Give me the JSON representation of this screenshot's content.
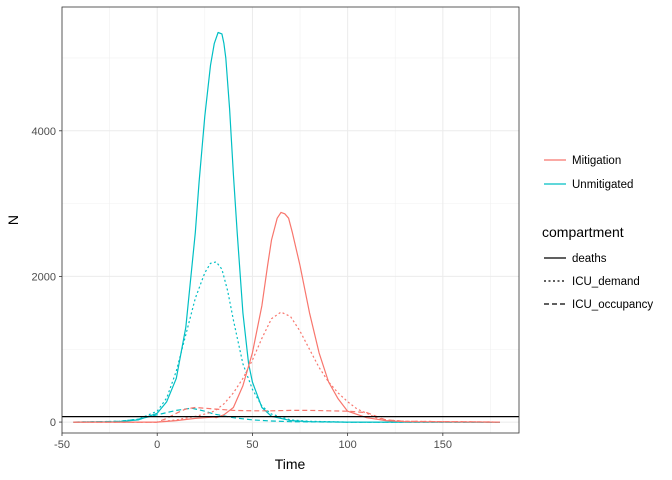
{
  "chart_data": {
    "type": "line",
    "xlabel": "Time",
    "ylabel": "N",
    "xlim": [
      -50,
      190
    ],
    "ylim": [
      -150,
      5700
    ],
    "x_ticks": [
      -50,
      0,
      50,
      100,
      150
    ],
    "y_ticks": [
      0,
      2000,
      4000
    ],
    "grid": true,
    "hline": {
      "y": 75,
      "color": "#000000",
      "linetype": "solid"
    },
    "legends": [
      {
        "title": "",
        "position": "right",
        "entries": [
          {
            "label": "Mitigation",
            "color": "#F8766D"
          },
          {
            "label": "Unmitigated",
            "color": "#00BFC4"
          }
        ]
      },
      {
        "title": "compartment",
        "position": "right",
        "entries": [
          {
            "label": "deaths",
            "linetype": "solid"
          },
          {
            "label": "ICU_demand",
            "linetype": "dotted"
          },
          {
            "label": "ICU_occupancy",
            "linetype": "dashed"
          }
        ]
      }
    ],
    "series": [
      {
        "name": "Unmitigated",
        "compartment": "deaths",
        "color": "#00BFC4",
        "linetype": "solid",
        "x": [
          -44,
          -20,
          -10,
          0,
          5,
          10,
          15,
          20,
          22,
          25,
          28,
          30,
          32,
          34,
          35,
          36,
          38,
          40,
          42,
          45,
          48,
          50,
          55,
          60,
          70,
          80,
          100,
          180
        ],
        "y": [
          0,
          5,
          30,
          120,
          280,
          600,
          1300,
          2600,
          3300,
          4200,
          4900,
          5200,
          5350,
          5330,
          5200,
          5000,
          4300,
          3400,
          2600,
          1500,
          800,
          550,
          200,
          80,
          20,
          5,
          0,
          0
        ]
      },
      {
        "name": "Unmitigated",
        "compartment": "ICU_demand",
        "color": "#00BFC4",
        "linetype": "dotted",
        "x": [
          -44,
          -20,
          -10,
          0,
          5,
          10,
          15,
          20,
          25,
          28,
          31,
          34,
          37,
          40,
          45,
          50,
          55,
          60,
          70,
          80,
          100,
          180
        ],
        "y": [
          0,
          10,
          40,
          150,
          330,
          700,
          1200,
          1700,
          2050,
          2180,
          2200,
          2100,
          1800,
          1400,
          800,
          450,
          220,
          110,
          30,
          10,
          0,
          0
        ]
      },
      {
        "name": "Unmitigated",
        "compartment": "ICU_occupancy",
        "color": "#00BFC4",
        "linetype": "dashed",
        "x": [
          -44,
          -20,
          -10,
          0,
          5,
          10,
          15,
          18,
          20,
          25,
          30,
          40,
          50,
          60,
          70,
          80,
          100,
          180
        ],
        "y": [
          0,
          10,
          40,
          100,
          130,
          160,
          180,
          190,
          180,
          150,
          110,
          60,
          30,
          15,
          5,
          2,
          0,
          0
        ]
      },
      {
        "name": "Mitigation",
        "compartment": "deaths",
        "color": "#F8766D",
        "linetype": "solid",
        "x": [
          -44,
          0,
          10,
          20,
          25,
          30,
          31,
          35,
          40,
          45,
          50,
          55,
          58,
          60,
          63,
          65,
          67,
          69,
          71,
          75,
          80,
          85,
          90,
          95,
          100,
          110,
          120,
          130,
          180
        ],
        "y": [
          0,
          0,
          20,
          50,
          60,
          70,
          60,
          100,
          200,
          500,
          950,
          1600,
          2150,
          2500,
          2800,
          2880,
          2860,
          2800,
          2600,
          2150,
          1500,
          950,
          550,
          320,
          150,
          60,
          20,
          5,
          0
        ]
      },
      {
        "name": "Mitigation",
        "compartment": "ICU_demand",
        "color": "#F8766D",
        "linetype": "dotted",
        "x": [
          -44,
          0,
          10,
          20,
          25,
          30,
          35,
          40,
          45,
          50,
          55,
          60,
          65,
          70,
          75,
          80,
          85,
          90,
          95,
          100,
          105,
          110,
          115,
          120,
          130,
          180
        ],
        "y": [
          0,
          0,
          30,
          80,
          110,
          150,
          250,
          400,
          600,
          850,
          1150,
          1420,
          1510,
          1450,
          1250,
          1000,
          750,
          550,
          400,
          280,
          180,
          120,
          60,
          30,
          10,
          0
        ]
      },
      {
        "name": "Mitigation",
        "compartment": "ICU_occupancy",
        "color": "#F8766D",
        "linetype": "dashed",
        "x": [
          -44,
          0,
          5,
          10,
          15,
          20,
          25,
          30,
          35,
          40,
          50,
          60,
          70,
          80,
          90,
          100,
          110,
          115,
          120,
          130,
          180
        ],
        "y": [
          0,
          0,
          50,
          120,
          180,
          200,
          190,
          180,
          170,
          160,
          155,
          155,
          160,
          160,
          155,
          150,
          130,
          80,
          30,
          10,
          0
        ]
      }
    ]
  }
}
